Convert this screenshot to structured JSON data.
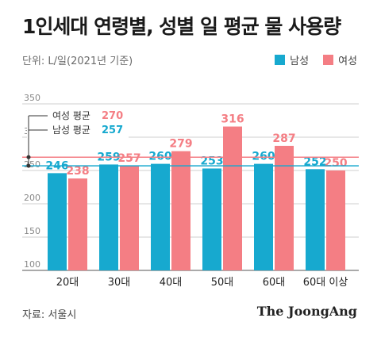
{
  "header": {
    "title": "1인세대 연령별, 성별 일 평균 물 사용량",
    "subtitle": "단위: L/일(2021년 기준)"
  },
  "legend": [
    {
      "label": "남성",
      "color": "#17a9cf"
    },
    {
      "label": "여성",
      "color": "#f47e84"
    }
  ],
  "footer": {
    "source": "자료: 서울시",
    "brand": "The JoongAng"
  },
  "chart_data": {
    "type": "bar",
    "categories": [
      "20대",
      "30대",
      "40대",
      "50대",
      "60대",
      "60대 이상"
    ],
    "series": [
      {
        "name": "남성",
        "values": [
          246,
          259,
          260,
          253,
          260,
          252
        ],
        "color": "#17a9cf"
      },
      {
        "name": "여성",
        "values": [
          238,
          257,
          279,
          316,
          287,
          250
        ],
        "color": "#f47e84"
      }
    ],
    "ylim": [
      100,
      350
    ],
    "yticks": [
      100,
      150,
      200,
      250,
      300,
      350
    ],
    "grid": true,
    "annotations": [
      {
        "label": "여성 평균",
        "value": 270,
        "color": "#f47e84"
      },
      {
        "label": "남성 평균",
        "value": 257,
        "color": "#17a9cf"
      }
    ]
  }
}
